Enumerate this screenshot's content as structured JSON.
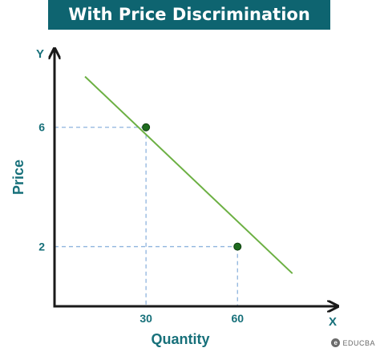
{
  "chart_data": {
    "type": "line",
    "title": "With Price Discrimination",
    "xlabel": "Quantity",
    "ylabel": "Price",
    "x_axis_letter": "X",
    "y_axis_letter": "Y",
    "xlim": [
      0,
      92
    ],
    "ylim": [
      0,
      8.6
    ],
    "x_ticks": [
      {
        "value": 30,
        "label": "30"
      },
      {
        "value": 60,
        "label": "60"
      }
    ],
    "y_ticks": [
      {
        "value": 6,
        "label": "6"
      },
      {
        "value": 2,
        "label": "2"
      }
    ],
    "series": [
      {
        "x": [
          10,
          78
        ],
        "y": [
          7.7,
          1.1
        ],
        "color": "#6cb043"
      }
    ],
    "points": [
      {
        "x": 30,
        "y": 6
      },
      {
        "x": 60,
        "y": 2
      }
    ],
    "point_color": "#1e6b1e",
    "guide_color": "#8fb4de",
    "axis_color": "#1a1a1a",
    "label_color": "#17707a",
    "banner_color": "#0e6470"
  },
  "watermark": {
    "text": "EDUCBA"
  }
}
